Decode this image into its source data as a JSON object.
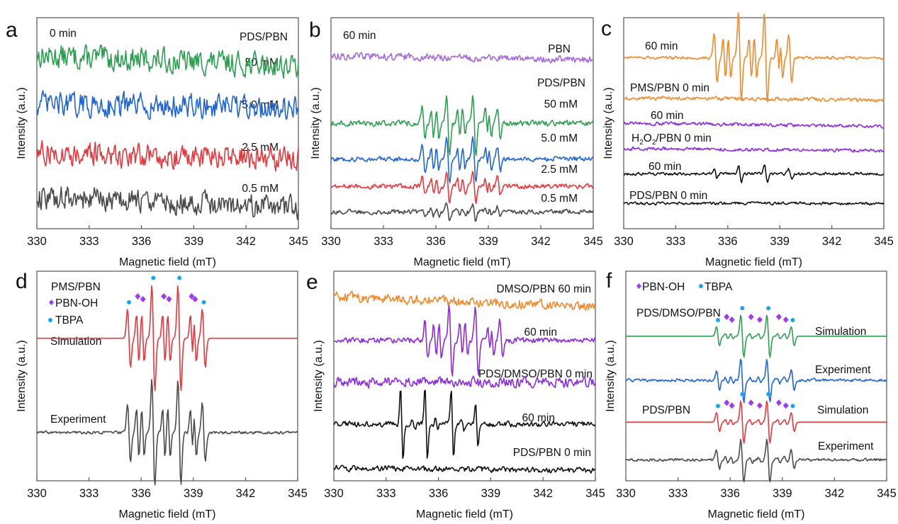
{
  "chart_data": [
    {
      "panel": "a",
      "type": "line",
      "xlabel": "Magnetic field (mT)",
      "ylabel": "Intensity (a.u.)",
      "xlim": [
        330,
        345
      ],
      "xticks": [
        "330",
        "333",
        "336",
        "339",
        "342",
        "345"
      ],
      "annotations": [
        {
          "text": "0 min",
          "pos": "top-left"
        },
        {
          "text": "PDS/PBN",
          "pos": "top-right"
        }
      ],
      "series": [
        {
          "name": "50 mM",
          "color": "#2e9e52",
          "offset": 0.82,
          "signal": "noise",
          "noise": 0.05,
          "drift": -0.05
        },
        {
          "name": "5.0 mM",
          "color": "#1f64d6",
          "offset": 0.59,
          "signal": "noise",
          "noise": 0.05,
          "drift": -0.02
        },
        {
          "name": "2.5 mM",
          "color": "#e8363c",
          "offset": 0.36,
          "signal": "noise",
          "noise": 0.05,
          "drift": -0.03
        },
        {
          "name": "0.5 mM",
          "color": "#4a4a4a",
          "offset": 0.15,
          "signal": "noise",
          "noise": 0.05,
          "drift": -0.05
        }
      ]
    },
    {
      "panel": "b",
      "type": "line",
      "xlabel": "Magnetic field (mT)",
      "ylabel": "Intensity (a.u.)",
      "xlim": [
        330,
        345
      ],
      "xticks": [
        "330",
        "333",
        "336",
        "339",
        "342",
        "345"
      ],
      "annotations": [
        {
          "text": "60 min",
          "pos": "top-left"
        },
        {
          "text": "PBN",
          "pos": "right",
          "y": 0.87
        },
        {
          "text": "PDS/PBN",
          "pos": "right",
          "y": 0.67
        }
      ],
      "series": [
        {
          "name": "PBN",
          "color": "#a66bd8",
          "offset": 0.82,
          "signal": "noise",
          "noise": 0.015,
          "drift": -0.02
        },
        {
          "name": "50 mM",
          "color": "#2e9e52",
          "offset": 0.5,
          "signal": "pbn_mix",
          "amp": 0.17,
          "noise": 0.012
        },
        {
          "name": "5.0 mM",
          "color": "#1f64d6",
          "offset": 0.33,
          "signal": "pbn_mix",
          "amp": 0.13,
          "noise": 0.01
        },
        {
          "name": "2.5 mM",
          "color": "#e8363c",
          "offset": 0.2,
          "signal": "pbn_mix",
          "amp": 0.09,
          "noise": 0.01
        },
        {
          "name": "0.5 mM",
          "color": "#4a4a4a",
          "offset": 0.08,
          "signal": "pbn_mix",
          "amp": 0.05,
          "noise": 0.01
        }
      ]
    },
    {
      "panel": "c",
      "type": "line",
      "xlabel": "Magnetic field (mT)",
      "ylabel": "Intensity (a.u.)",
      "xlim": [
        330,
        345
      ],
      "xticks": [
        "330",
        "333",
        "336",
        "339",
        "342",
        "345"
      ],
      "series": [
        {
          "name": "60 min",
          "label_group": "PMS/PBN",
          "color": "#f08a2c",
          "offset": 0.81,
          "signal": "pbn_mix",
          "amp": 0.25,
          "noise": 0.006
        },
        {
          "name": "PMS/PBN 0 min",
          "color": "#f08a2c",
          "offset": 0.62,
          "signal": "noise",
          "noise": 0.008,
          "drift": -0.01
        },
        {
          "name": "60 min",
          "label_group": "H2O2/PBN",
          "color": "#8a2be2",
          "offset": 0.5,
          "signal": "noise",
          "noise": 0.007,
          "drift": -0.015
        },
        {
          "name": "H2O2/PBN 0 min",
          "color": "#8a2be2",
          "offset": 0.38,
          "signal": "noise",
          "noise": 0.007,
          "drift": -0.01
        },
        {
          "name": "60 min",
          "label_group": "PDS/PBN",
          "color": "#111111",
          "offset": 0.26,
          "signal": "tbpa_only",
          "amp": 0.05,
          "noise": 0.006
        },
        {
          "name": "PDS/PBN 0 min",
          "color": "#111111",
          "offset": 0.12,
          "signal": "noise",
          "noise": 0.006,
          "drift": 0
        }
      ]
    },
    {
      "panel": "d",
      "type": "line",
      "xlabel": "Magnetic field (mT)",
      "ylabel": "Intensity (a.u.)",
      "xlim": [
        330,
        345
      ],
      "xticks": [
        "330",
        "333",
        "336",
        "339",
        "342",
        "345"
      ],
      "legend": {
        "title": "PMS/PBN",
        "entries": [
          {
            "label": "PBN-OH",
            "marker": "diamond",
            "color": "#9b3cf0"
          },
          {
            "label": "TBPA",
            "marker": "circle",
            "color": "#1aa3f0"
          }
        ],
        "pos": "top-left"
      },
      "series": [
        {
          "name": "Simulation",
          "color": "#e8363c",
          "offset": 0.68,
          "signal": "pbn_mix",
          "amp": 0.3,
          "noise": 0
        },
        {
          "name": "Experiment",
          "color": "#4a4a4a",
          "offset": 0.23,
          "signal": "pbn_mix",
          "amp": 0.3,
          "noise": 0.006
        }
      ],
      "markers": {
        "TBPA_x": [
          335.3,
          336.7,
          338.2,
          339.6
        ],
        "PBNOH_x": [
          335.8,
          336.1,
          337.3,
          337.6,
          338.9,
          339.1
        ]
      }
    },
    {
      "panel": "e",
      "type": "line",
      "xlabel": "Magnetic field (mT)",
      "ylabel": "Intensity (a.u.)",
      "xlim": [
        330,
        345
      ],
      "xticks": [
        "330",
        "333",
        "336",
        "339",
        "342",
        "345"
      ],
      "series": [
        {
          "name": "DMSO/PBN 60 min",
          "color": "#f08a2c",
          "offset": 0.88,
          "signal": "noise",
          "noise": 0.02,
          "drift": -0.05
        },
        {
          "name": "60 min",
          "label_group": "PDS/DMSO/PBN",
          "color": "#8a2be2",
          "offset": 0.67,
          "signal": "pbn_mix",
          "amp": 0.2,
          "noise": 0.012
        },
        {
          "name": "PDS/DMSO/PBN 0 min",
          "color": "#8a2be2",
          "offset": 0.47,
          "signal": "noise",
          "noise": 0.022,
          "drift": 0
        },
        {
          "name": "60 min",
          "label_group": "PDS/PBN",
          "color": "#111111",
          "offset": 0.27,
          "signal": "quartet",
          "amp": 0.2,
          "noise": 0.012
        },
        {
          "name": "PDS/PBN 0 min",
          "color": "#111111",
          "offset": 0.06,
          "signal": "noise",
          "noise": 0.012,
          "drift": -0.01
        }
      ]
    },
    {
      "panel": "f",
      "type": "line",
      "xlabel": "Magnetic field (mT)",
      "ylabel": "Intensity (a.u.)",
      "xlim": [
        330,
        345
      ],
      "xticks": [
        "330",
        "333",
        "336",
        "339",
        "342",
        "345"
      ],
      "legend": {
        "entries": [
          {
            "label": "PBN-OH",
            "marker": "diamond",
            "color": "#9b3cf0"
          },
          {
            "label": "TBPA",
            "marker": "circle",
            "color": "#1aa3f0"
          }
        ],
        "pos": "top-left"
      },
      "series": [
        {
          "name": "Simulation",
          "label_group": "PDS/DMSO/PBN",
          "color": "#2e9e52",
          "offset": 0.69,
          "signal": "pbn_mix_f",
          "amp": 0.12,
          "noise": 0
        },
        {
          "name": "Experiment",
          "label_group": "PDS/DMSO/PBN",
          "color": "#1f64d6",
          "offset": 0.48,
          "signal": "pbn_mix_f",
          "amp": 0.12,
          "noise": 0.006
        },
        {
          "name": "Simulation",
          "label_group": "PDS/PBN",
          "color": "#e8363c",
          "offset": 0.28,
          "signal": "pbn_mix_f",
          "amp": 0.12,
          "noise": 0
        },
        {
          "name": "Experiment",
          "label_group": "PDS/PBN",
          "color": "#4a4a4a",
          "offset": 0.1,
          "signal": "pbn_mix_f",
          "amp": 0.12,
          "noise": 0.006
        }
      ],
      "markers": {
        "TBPA_x": [
          335.3,
          336.7,
          338.2,
          339.6
        ],
        "PBNOH_x": [
          335.8,
          336.1,
          337.2,
          337.7,
          338.8,
          339.2
        ]
      }
    }
  ],
  "text": {
    "panels": [
      "a",
      "b",
      "c",
      "d",
      "e",
      "f"
    ],
    "xlabel": "Magnetic field (mT)",
    "ylabel": "Intensity (a.u.)",
    "a": {
      "time": "0 min",
      "group": "PDS/PBN",
      "labels": [
        "50 mM",
        "5.0 mM",
        "2.5 mM",
        "0.5 mM"
      ]
    },
    "b": {
      "time": "60 min",
      "pbn": "PBN",
      "group": "PDS/PBN",
      "labels": [
        "50 mM",
        "5.0 mM",
        "2.5 mM",
        "0.5 mM"
      ]
    },
    "c": {
      "labels": [
        "60 min",
        "PMS/PBN 0 min",
        "60 min",
        "/PBN 0 min",
        "60 min",
        "PDS/PBN 0 min"
      ],
      "h2o2_prefix": "H",
      "h2o2_sub1": "2",
      "h2o2_o": "O",
      "h2o2_sub2": "2"
    },
    "d": {
      "group": "PMS/PBN",
      "legend1": "PBN-OH",
      "legend2": "TBPA",
      "labels": [
        "Simulation",
        "Experiment"
      ]
    },
    "e": {
      "labels": [
        "DMSO/PBN 60 min",
        "60 min",
        "PDS/DMSO/PBN 0 min",
        "60 min",
        "PDS/PBN 0 min"
      ]
    },
    "f": {
      "legend1": "PBN-OH",
      "legend2": "TBPA",
      "group1": "PDS/DMSO/PBN",
      "group2": "PDS/PBN",
      "labels": [
        "Simulation",
        "Experiment",
        "Simulation",
        "Experiment"
      ]
    }
  }
}
